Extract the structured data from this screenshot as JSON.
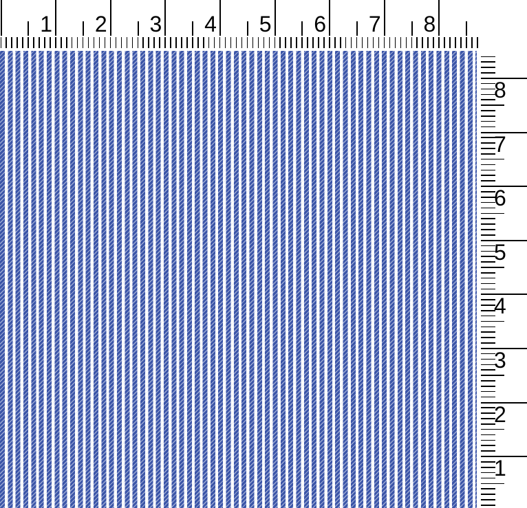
{
  "scene": {
    "description": "Swatch of blue and white pinstripe ticking fabric photographed with inch rulers along the top and right edges",
    "background_color": "#ffffff"
  },
  "rulers": {
    "tick_color": "#000000",
    "label_color": "#000000",
    "top": {
      "orientation": "horizontal",
      "labels": [
        "1",
        "2",
        "3",
        "4",
        "5",
        "6",
        "7",
        "8"
      ]
    },
    "right": {
      "orientation": "vertical",
      "labels": [
        "8",
        "7",
        "6",
        "5",
        "4",
        "3",
        "2",
        "1"
      ]
    }
  },
  "fabric": {
    "pattern": "vertical pinstripes with diagonal twill specks",
    "stripe_color": "#3b55a8",
    "gap_color": "#fdfdff",
    "speck_color": "#ffffff"
  }
}
